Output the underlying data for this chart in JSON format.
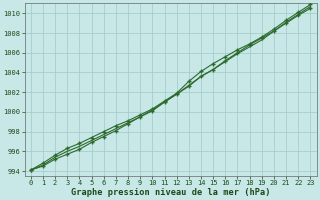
{
  "xlabel": "Graphe pression niveau de la mer (hPa)",
  "x": [
    0,
    1,
    2,
    3,
    4,
    5,
    6,
    7,
    8,
    9,
    10,
    11,
    12,
    13,
    14,
    15,
    16,
    17,
    18,
    19,
    20,
    21,
    22,
    23
  ],
  "line1": [
    994.1,
    994.5,
    995.2,
    995.7,
    996.2,
    996.9,
    997.5,
    998.1,
    998.8,
    999.5,
    1000.1,
    1001.0,
    1001.8,
    1002.6,
    1003.6,
    1004.3,
    1005.2,
    1006.0,
    1006.8,
    1007.5,
    1008.2,
    1009.0,
    1009.8,
    1010.5
  ],
  "line2": [
    994.1,
    994.8,
    995.6,
    996.3,
    996.8,
    997.4,
    998.0,
    998.6,
    999.1,
    999.7,
    1000.3,
    1001.1,
    1001.9,
    1003.1,
    1004.1,
    1004.9,
    1005.6,
    1006.3,
    1006.9,
    1007.6,
    1008.4,
    1009.3,
    1010.1,
    1010.9
  ],
  "line3": [
    994.1,
    994.6,
    995.4,
    996.0,
    996.5,
    997.1,
    997.7,
    998.3,
    998.9,
    999.5,
    1000.2,
    1001.0,
    1001.8,
    1002.7,
    1003.6,
    1004.3,
    1005.1,
    1005.9,
    1006.6,
    1007.3,
    1008.2,
    1009.1,
    1009.9,
    1010.7
  ],
  "line_color": "#2d6a2d",
  "bg_color": "#c8e8e8",
  "grid_color": "#a0c8c8",
  "ylim": [
    993.5,
    1011.0
  ],
  "xlim": [
    -0.5,
    23.5
  ],
  "yticks": [
    994,
    996,
    998,
    1000,
    1002,
    1004,
    1006,
    1008,
    1010
  ],
  "xticks": [
    0,
    1,
    2,
    3,
    4,
    5,
    6,
    7,
    8,
    9,
    10,
    11,
    12,
    13,
    14,
    15,
    16,
    17,
    18,
    19,
    20,
    21,
    22,
    23
  ],
  "tick_fontsize": 5.0,
  "label_fontsize": 6.2,
  "label_color": "#1a4a1a",
  "tick_color": "#1a4a1a",
  "spine_color": "#666666"
}
